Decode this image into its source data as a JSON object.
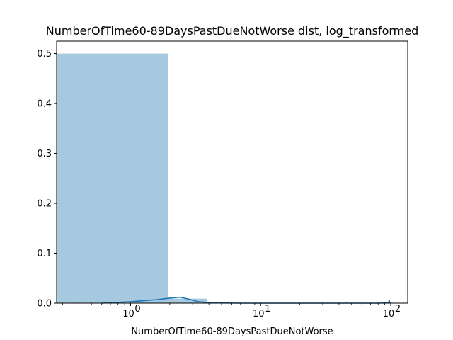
{
  "chart_data": {
    "type": "bar",
    "title": "NumberOfTime60-89DaysPastDueNotWorse dist, log_transformed",
    "xlabel": "NumberOfTime60-89DaysPastDueNotWorse",
    "ylabel": "",
    "x_scale": "log",
    "xlim": [
      0.27,
      135
    ],
    "ylim": [
      0,
      0.525
    ],
    "grid": false,
    "y_ticks": [
      {
        "value": 0.0,
        "label": "0.0"
      },
      {
        "value": 0.1,
        "label": "0.1"
      },
      {
        "value": 0.2,
        "label": "0.2"
      },
      {
        "value": 0.3,
        "label": "0.3"
      },
      {
        "value": 0.4,
        "label": "0.4"
      },
      {
        "value": 0.5,
        "label": "0.5"
      }
    ],
    "x_ticks": [
      {
        "value": 1,
        "base": "10",
        "exp": "0"
      },
      {
        "value": 10,
        "base": "10",
        "exp": "1"
      },
      {
        "value": 100,
        "base": "10",
        "exp": "2"
      }
    ],
    "bars": [
      {
        "x0": 0.0,
        "x1": 1.95,
        "value": 0.5
      },
      {
        "x0": 1.95,
        "x1": 3.9,
        "value": 0.009
      },
      {
        "x0": 3.9,
        "x1": 5.85,
        "value": 0.0003
      },
      {
        "x0": 96.0,
        "x1": 98.0,
        "value": 0.0008
      }
    ],
    "kde": {
      "x": [
        0.6,
        1.0,
        1.6,
        2.0,
        2.4,
        2.8,
        3.3,
        3.9,
        5.0,
        7.0,
        15.0,
        40.0,
        80.0,
        96.0,
        97.5,
        98.5
      ],
      "y": [
        0.0,
        0.003,
        0.007,
        0.01,
        0.012,
        0.008,
        0.003,
        0.0015,
        0.0004,
        0.0,
        0.0,
        0.0,
        0.0,
        0.0005,
        0.006,
        0.0
      ]
    },
    "colors": {
      "bar": "#a6c9e0",
      "line": "#1f77b4",
      "axis": "#000000"
    }
  }
}
